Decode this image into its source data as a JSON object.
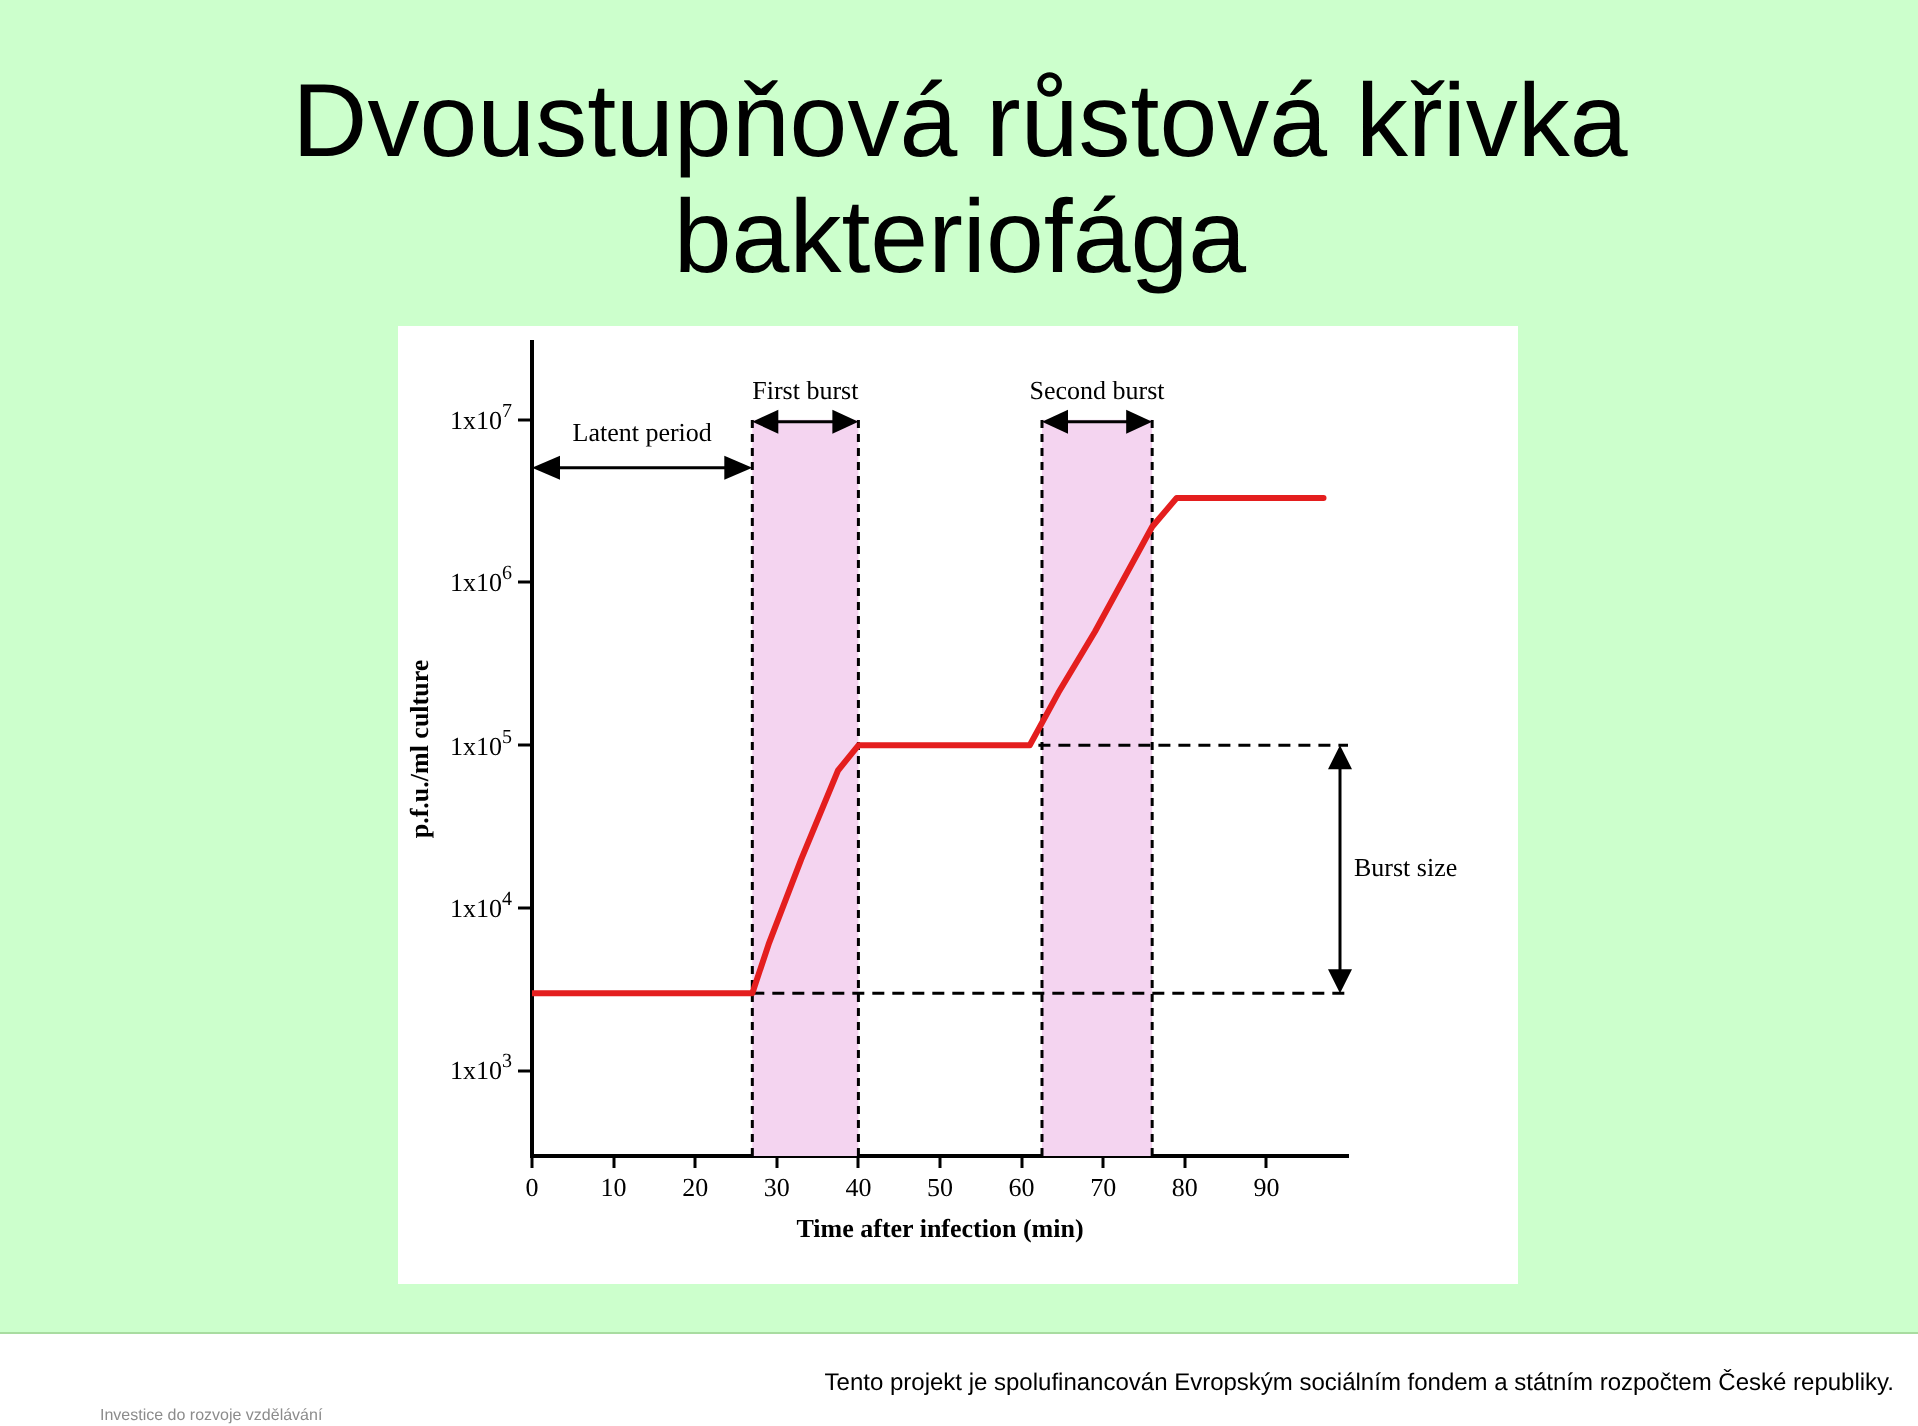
{
  "chart_data": {
    "type": "line",
    "title": "Dvoustupňová růstová křivka bakteriofága",
    "xlabel": "Time after infection (min)",
    "ylabel": "p.f.u./ml culture",
    "log": true,
    "xlim": [
      0,
      100
    ],
    "xticks": [
      0,
      10,
      20,
      30,
      40,
      50,
      60,
      70,
      80,
      90
    ],
    "ylim": [
      300,
      30000000
    ],
    "yticks": [
      {
        "value": 1000,
        "label": "1x10$^{3}$"
      },
      {
        "value": 10000,
        "label": "1x10$^{4}$"
      },
      {
        "value": 100000,
        "label": "1x10$^{5}$"
      },
      {
        "value": 1000000,
        "label": "1x10$^{6}$"
      },
      {
        "value": 10000000,
        "label": "1x10$^{7}$"
      }
    ],
    "series": [
      {
        "color": "#e41e1e",
        "x": [
          0,
          27,
          29,
          33,
          37.5,
          40,
          61,
          64.5,
          69,
          76,
          79,
          97
        ],
        "values": [
          3000,
          3000,
          6000,
          20000,
          70000,
          100000,
          100000,
          210000,
          500000,
          2200000,
          3300000,
          3300000
        ]
      },
      {
        "color": "#000000",
        "line_style": "dashed",
        "x": [
          40,
          100
        ],
        "values": [
          100000,
          100000
        ]
      },
      {
        "color": "#000000",
        "line_style": "dashed",
        "x": [
          27,
          100
        ],
        "values": [
          3000,
          3000
        ]
      }
    ],
    "bands": [
      {
        "axis": "x",
        "from": 27,
        "to": 40,
        "label": "First burst",
        "color": "#f4d4f0"
      },
      {
        "axis": "x",
        "from": 62.5,
        "to": 76,
        "label": "Second burst",
        "color": "#f4d4f0"
      }
    ],
    "annotations": [
      "Latent period",
      "Burst size",
      "Tento projekt je spolufinancován Evropským sociálním fondem a státním rozpočtem České republiky.",
      "Investice do rozvoje vzdělávání"
    ]
  }
}
